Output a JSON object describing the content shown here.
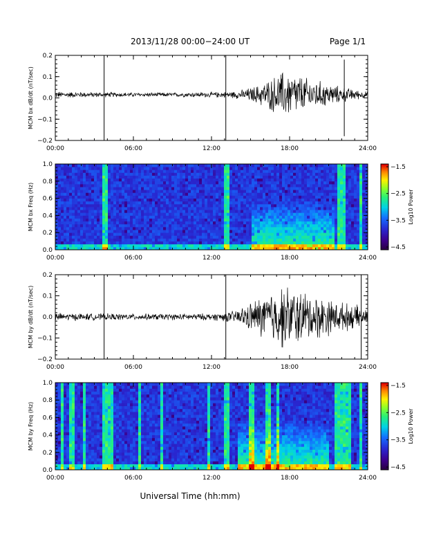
{
  "header": {
    "title": "2013/11/28  00:00−24:00 UT",
    "page": "Page 1/1"
  },
  "xlabel": "Universal Time (hh:mm)",
  "colors": {
    "trace": "#000000",
    "axis": "#000000",
    "colorbar": [
      "#3a0050",
      "#2c2ccc",
      "#1a8cff",
      "#00e0e0",
      "#40ff40",
      "#ffff00",
      "#ff8000",
      "#e00000"
    ]
  },
  "chart_data": [
    {
      "type": "line",
      "ylabel": "MCM bx dB/dt (nT/sec)",
      "xlim": [
        0,
        24
      ],
      "ylim": [
        -0.2,
        0.2
      ],
      "xticks": [
        "00:00",
        "06:00",
        "12:00",
        "18:00",
        "24:00"
      ],
      "yticks": [
        "0.2",
        "0.1",
        "0.0",
        "−0.1",
        "−0.2"
      ],
      "envelope": {
        "hours": [
          0,
          3,
          6,
          9,
          12,
          13.5,
          14.5,
          15.5,
          16.5,
          17.5,
          18.5,
          19.5,
          20.5,
          21.5,
          22.5,
          23.5,
          24
        ],
        "amplitude": [
          0.012,
          0.01,
          0.008,
          0.008,
          0.01,
          0.012,
          0.02,
          0.035,
          0.06,
          0.09,
          0.08,
          0.06,
          0.05,
          0.035,
          0.025,
          0.015,
          0.012
        ]
      },
      "offset": 0.015,
      "spikes": [
        {
          "hour": 3.75,
          "min": -0.2,
          "max": 0.2
        },
        {
          "hour": 13.1,
          "min": -0.2,
          "max": 0.2
        },
        {
          "hour": 22.2,
          "min": -0.18,
          "max": 0.18
        }
      ]
    },
    {
      "type": "heatmap",
      "ylabel": "MCM bx Freq (Hz)",
      "xlim": [
        0,
        24
      ],
      "ylim": [
        0,
        1
      ],
      "xticks": [
        "00:00",
        "06:00",
        "12:00",
        "18:00",
        "24:00"
      ],
      "yticks": [
        "1.0",
        "0.8",
        "0.6",
        "0.4",
        "0.2",
        "0.0"
      ],
      "colorbar": {
        "label": "Log10 Power",
        "ticks": [
          "−1.5",
          "−2.5",
          "−3.5",
          "−4.5"
        ],
        "range": [
          -4.5,
          -1.5
        ]
      },
      "bright_stripes": [
        3.75,
        13.1,
        21.9,
        22.2,
        23.5
      ],
      "enhanced_interval": [
        15.0,
        21.5
      ]
    },
    {
      "type": "line",
      "ylabel": "MCM by dB/dt (nT/sec)",
      "xlim": [
        0,
        24
      ],
      "ylim": [
        -0.2,
        0.2
      ],
      "xticks": [
        "00:00",
        "06:00",
        "12:00",
        "18:00",
        "24:00"
      ],
      "yticks": [
        "0.2",
        "0.1",
        "0.0",
        "−0.1",
        "−0.2"
      ],
      "envelope": {
        "hours": [
          0,
          3,
          6,
          9,
          12,
          13.5,
          14.5,
          15.5,
          16.5,
          17.5,
          18.5,
          19.5,
          20.5,
          21.5,
          22.5,
          23.5,
          24
        ],
        "amplitude": [
          0.015,
          0.013,
          0.012,
          0.012,
          0.013,
          0.02,
          0.04,
          0.07,
          0.1,
          0.12,
          0.11,
          0.09,
          0.08,
          0.06,
          0.05,
          0.04,
          0.02
        ]
      },
      "offset": 0.0,
      "spikes": [
        {
          "hour": 3.75,
          "min": -0.2,
          "max": 0.2
        },
        {
          "hour": 13.1,
          "min": -0.2,
          "max": 0.2
        },
        {
          "hour": 23.5,
          "min": -0.2,
          "max": 0.2
        }
      ]
    },
    {
      "type": "heatmap",
      "ylabel": "MCM by Freq (Hz)",
      "xlim": [
        0,
        24
      ],
      "ylim": [
        0,
        1
      ],
      "xticks": [
        "00:00",
        "06:00",
        "12:00",
        "18:00",
        "24:00"
      ],
      "yticks": [
        "1.0",
        "0.8",
        "0.6",
        "0.4",
        "0.2",
        "0.0"
      ],
      "colorbar": {
        "label": "Log10 Power",
        "ticks": [
          "−1.5",
          "−2.5",
          "−3.5",
          "−4.5"
        ],
        "range": [
          -4.5,
          -1.5
        ]
      },
      "bright_stripes": [
        0.5,
        1.3,
        2.2,
        3.75,
        4.2,
        6.5,
        8.2,
        11.8,
        13.1,
        15.1,
        16.3,
        17.1,
        21.6,
        22.1,
        22.5,
        23.5
      ],
      "enhanced_interval": [
        14.0,
        21.0
      ]
    }
  ]
}
